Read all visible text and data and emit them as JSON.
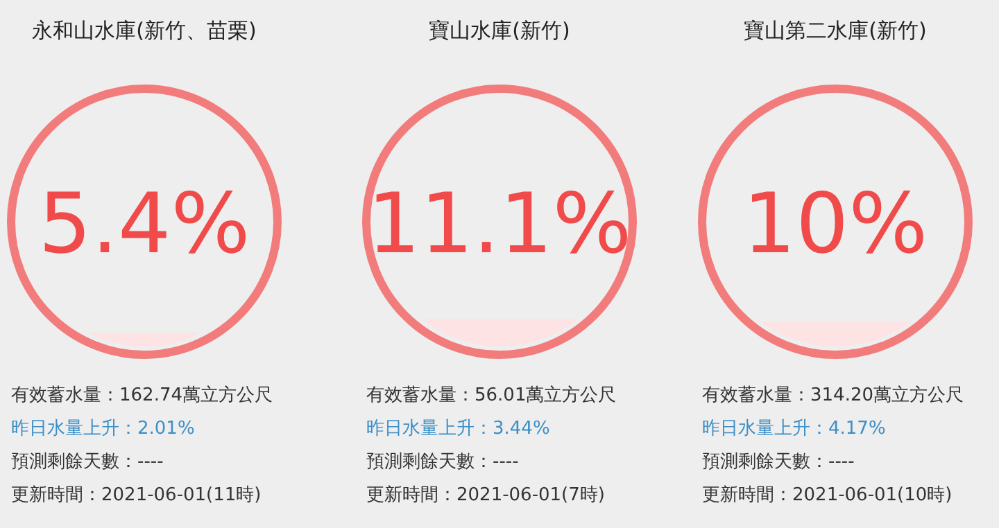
{
  "chart_data": [
    {
      "type": "other",
      "title": "永和山水庫(新竹、苗栗)",
      "values": [
        5.4
      ],
      "value_labels": [
        "5.4%"
      ],
      "color": "#f27b7b",
      "annotations": [
        "有效蓄水量：162.74萬立方公尺",
        "昨日水量上升：2.01%",
        "預測剩餘天數：----",
        "更新時間：2021-06-01(11時)"
      ]
    },
    {
      "type": "other",
      "title": "寶山水庫(新竹)",
      "values": [
        11.1
      ],
      "value_labels": [
        "11.1%"
      ],
      "color": "#f27b7b",
      "annotations": [
        "有效蓄水量：56.01萬立方公尺",
        "昨日水量上升：3.44%",
        "預測剩餘天數：----",
        "更新時間：2021-06-01(7時)"
      ]
    },
    {
      "type": "other",
      "title": "寶山第二水庫(新竹)",
      "values": [
        10
      ],
      "value_labels": [
        "10%"
      ],
      "color": "#f27b7b",
      "annotations": [
        "有效蓄水量：314.20萬立方公尺",
        "昨日水量上升：4.17%",
        "預測剩餘天數：----",
        "更新時間：2021-06-01(10時)"
      ]
    }
  ]
}
